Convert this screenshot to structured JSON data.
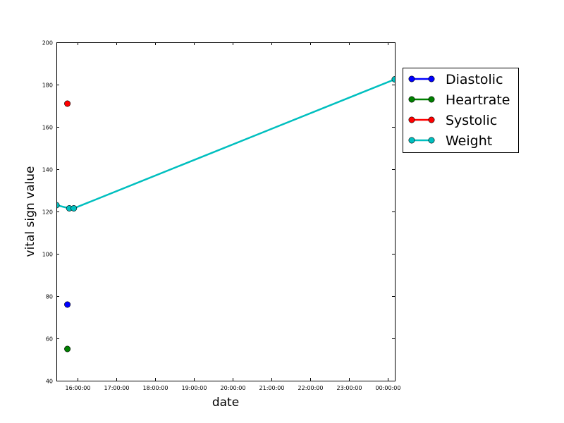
{
  "chart_data": {
    "type": "line",
    "title": "",
    "xlabel": "date",
    "ylabel": "vital sign value",
    "xlim": [
      "15:27:00",
      "00:11:00"
    ],
    "ylim": [
      40,
      200
    ],
    "x_ticks": [
      "16:00:00",
      "17:00:00",
      "18:00:00",
      "19:00:00",
      "20:00:00",
      "21:00:00",
      "22:00:00",
      "23:00:00",
      "00:00:00"
    ],
    "y_ticks": [
      40,
      60,
      80,
      100,
      120,
      140,
      160,
      180,
      200
    ],
    "grid": false,
    "legend_position": "outside-right",
    "series": [
      {
        "name": "Diastolic",
        "color": "#0000ff",
        "marker": "circle",
        "points": [
          {
            "x": "15:44:00",
            "y": 76
          }
        ]
      },
      {
        "name": "Heartrate",
        "color": "#008000",
        "marker": "circle",
        "points": [
          {
            "x": "15:44:00",
            "y": 55
          }
        ]
      },
      {
        "name": "Systolic",
        "color": "#ff0000",
        "marker": "circle",
        "points": [
          {
            "x": "15:44:00",
            "y": 171
          }
        ]
      },
      {
        "name": "Weight",
        "color": "#00bfbf",
        "marker": "circle",
        "points": [
          {
            "x": "15:27:00",
            "y": 123
          },
          {
            "x": "15:47:00",
            "y": 121.5
          },
          {
            "x": "15:54:00",
            "y": 121.5
          },
          {
            "x": "00:11:00",
            "y": 182.5
          }
        ]
      }
    ]
  }
}
